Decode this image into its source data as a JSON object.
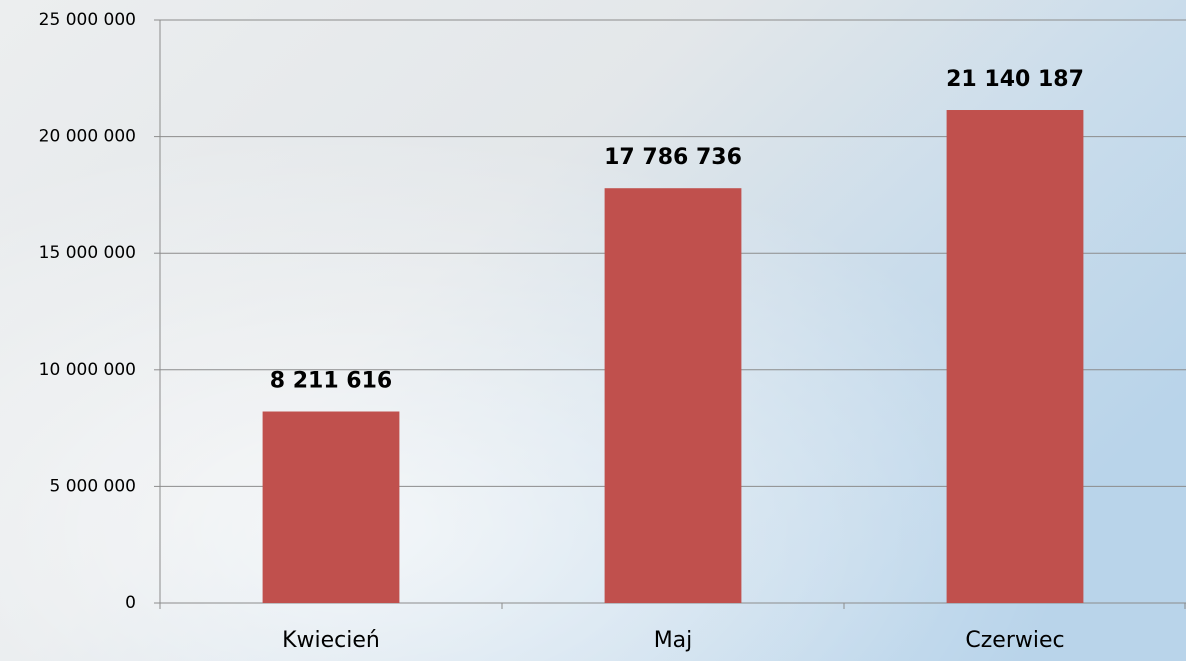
{
  "chart_data": {
    "type": "bar",
    "categories": [
      "Kwiecień",
      "Maj",
      "Czerwiec"
    ],
    "values": [
      8211616,
      17786736,
      21140187
    ],
    "value_labels": [
      "8 211 616",
      "17 786 736",
      "21 140 187"
    ],
    "color": "#c0504d",
    "ylim": [
      0,
      25000000
    ],
    "yticks": [
      0,
      {
        "value": 5000000,
        "label": "5 000 000"
      },
      {
        "value": 10000000,
        "label": "10 000 000"
      },
      {
        "value": 15000000,
        "label": "15 000 000"
      },
      {
        "value": 20000000,
        "label": "20 000 000"
      },
      {
        "value": 25000000,
        "label": "25 000 000"
      }
    ],
    "grid": true
  }
}
